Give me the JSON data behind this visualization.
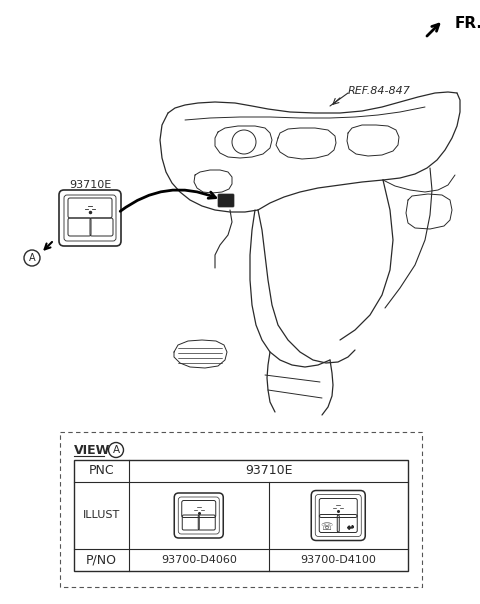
{
  "bg_color": "#ffffff",
  "line_color": "#2a2a2a",
  "title_fr": "FR.",
  "ref_label": "REF.84-847",
  "part_label": "93710E",
  "view_label": "VIEW",
  "view_circle": "A",
  "pnc_label": "PNC",
  "pnc_value": "93710E",
  "illust_label": "ILLUST",
  "pno_label": "P/NO",
  "pno_values": [
    "93700-D4060",
    "93700-D4100"
  ],
  "circle_A_label": "A"
}
